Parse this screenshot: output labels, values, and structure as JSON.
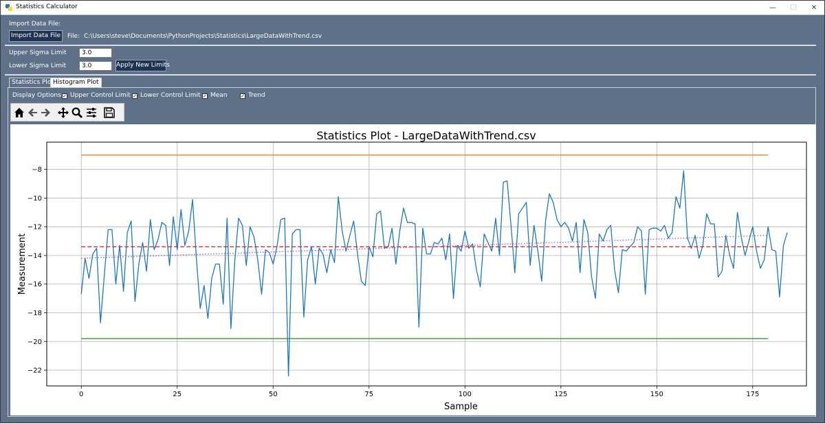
{
  "window": {
    "title": "Statistics Calculator",
    "minimize": "—",
    "maximize": "☐",
    "close": "✕"
  },
  "import": {
    "section_label": "Import Data File:",
    "button_label": "Import Data File",
    "file_label": "File:",
    "file_path": "C:\\Users\\steve\\Documents\\PythonProjects\\Statistics\\LargeDataWithTrend.csv"
  },
  "limits": {
    "upper_label": "Upper Sigma Limit",
    "upper_value": "3.0",
    "lower_label": "Lower Sigma Limit",
    "lower_value": "3.0",
    "apply_label": "Apply New Limits"
  },
  "tabs": [
    {
      "label": "Statistics Plot",
      "selected": true
    },
    {
      "label": "Histogram Plot",
      "selected": false
    }
  ],
  "display_options": {
    "label": "Display Options:",
    "items": [
      {
        "label": "Upper Control Limit",
        "checked": true
      },
      {
        "label": "Lower Control Limit",
        "checked": true
      },
      {
        "label": "Mean",
        "checked": true
      },
      {
        "label": "Trend",
        "checked": true
      }
    ]
  },
  "toolbar": {
    "icons": [
      "home-icon",
      "back-arrow-icon",
      "forward-arrow-icon",
      "pan-icon",
      "zoom-icon",
      "configure-subplots-icon",
      "save-icon"
    ]
  },
  "colors": {
    "background": "#5f7089",
    "button": "#1f3251",
    "series": "#1f77b4",
    "ucl": "#ff7f0e",
    "lcl": "#2ca02c",
    "mean": "#d62728",
    "trend": "#9467bd"
  },
  "chart_data": {
    "type": "line",
    "title": "Statistics Plot - LargeDataWithTrend.csv",
    "xlabel": "Sample",
    "ylabel": "Measurement",
    "xlim": [
      -9,
      189
    ],
    "ylim": [
      -23.1,
      -6.1
    ],
    "xticks": [
      0,
      25,
      50,
      75,
      100,
      125,
      150,
      175
    ],
    "yticks": [
      -8,
      -10,
      -12,
      -14,
      -16,
      -18,
      -20,
      -22
    ],
    "grid": true,
    "series": [
      {
        "kind": "data",
        "color": "#1f77b4",
        "x_start": 0,
        "y": [
          -16.7,
          -14.2,
          -15.6,
          -13.9,
          -13.5,
          -18.7,
          -15.4,
          -12.2,
          -12.2,
          -16.0,
          -13.3,
          -16.5,
          -12.4,
          -11.6,
          -17.2,
          -14.6,
          -13.1,
          -15.1,
          -11.5,
          -13.6,
          -12.9,
          -11.7,
          -11.9,
          -14.7,
          -11.3,
          -13.6,
          -10.8,
          -13.3,
          -12.3,
          -10.1,
          -14.2,
          -17.7,
          -16.1,
          -18.4,
          -15.6,
          -14.6,
          -14.6,
          -17.4,
          -11.4,
          -19.1,
          -14.4,
          -11.4,
          -11.9,
          -14.7,
          -12.0,
          -12.7,
          -14.3,
          -16.7,
          -13.6,
          -13.8,
          -14.6,
          -13.4,
          -11.5,
          -11.4,
          -22.4,
          -12.5,
          -12.2,
          -12.2,
          -18.3,
          -14.3,
          -13.4,
          -16.0,
          -13.5,
          -13.9,
          -15.2,
          -13.6,
          -14.5,
          -9.9,
          -12.3,
          -13.7,
          -12.6,
          -11.6,
          -13.9,
          -15.8,
          -16.1,
          -13.4,
          -14.1,
          -11.1,
          -10.9,
          -13.5,
          -13.4,
          -12.1,
          -14.6,
          -12.3,
          -10.7,
          -11.7,
          -11.7,
          -11.8,
          -19.0,
          -12.1,
          -13.9,
          -13.9,
          -13.1,
          -13.2,
          -12.8,
          -14.3,
          -12.5,
          -17.0,
          -13.3,
          -13.7,
          -12.3,
          -13.5,
          -13.2,
          -15.0,
          -16.2,
          -12.5,
          -13.1,
          -13.7,
          -11.4,
          -14.0,
          -8.9,
          -8.8,
          -11.9,
          -15.2,
          -11.1,
          -10.7,
          -10.3,
          -14.7,
          -11.9,
          -13.7,
          -15.8,
          -11.6,
          -9.7,
          -10.3,
          -11.5,
          -12.0,
          -11.7,
          -12.1,
          -13.0,
          -11.7,
          -15.2,
          -11.5,
          -12.4,
          -15.5,
          -17.0,
          -12.5,
          -13.0,
          -12.2,
          -11.9,
          -15.0,
          -16.6,
          -13.6,
          -13.7,
          -13.4,
          -13.1,
          -12.0,
          -12.3,
          -16.7,
          -12.2,
          -12.1,
          -12.1,
          -12.3,
          -11.9,
          -12.8,
          -12.4,
          -9.9,
          -10.7,
          -8.1,
          -12.8,
          -13.5,
          -12.6,
          -14.2,
          -13.3,
          -11.1,
          -11.8,
          -11.8,
          -15.5,
          -15.1,
          -12.6,
          -14.0,
          -14.9,
          -11.0,
          -12.7,
          -14.0,
          -13.0,
          -12.0,
          -13.7,
          -14.9,
          -14.3,
          -12.0,
          -13.6,
          -13.7,
          -16.9,
          -13.3,
          -12.4
        ]
      },
      {
        "kind": "ucl",
        "name": "Upper Control Limit",
        "color": "#ff7f0e",
        "x": [
          0,
          179
        ],
        "y": [
          -7.0,
          -7.0
        ]
      },
      {
        "kind": "lcl",
        "name": "Lower Control Limit",
        "color": "#2ca02c",
        "x": [
          0,
          179
        ],
        "y": [
          -19.8,
          -19.8
        ]
      },
      {
        "kind": "mean",
        "name": "Mean",
        "color": "#d62728",
        "x": [
          0,
          179
        ],
        "y": [
          -13.4,
          -13.4
        ]
      },
      {
        "kind": "trend",
        "name": "Trend",
        "color": "#9467bd",
        "x": [
          0,
          179
        ],
        "y": [
          -14.2,
          -12.6
        ]
      }
    ]
  }
}
